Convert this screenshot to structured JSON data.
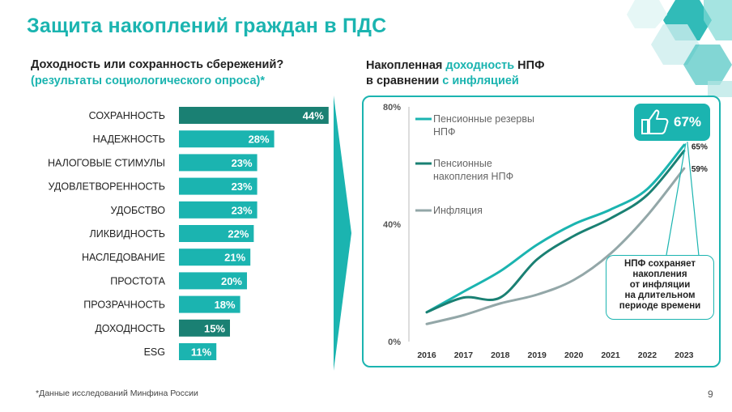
{
  "title": "Защита накоплений граждан в ПДС",
  "left": {
    "question": "Доходность или сохранность сбережений?",
    "subtitle": "(результаты социологического опроса)*"
  },
  "right": {
    "title_part1": "Накопленная ",
    "title_hl1": "доходность",
    "title_part2": " НПФ",
    "title_part3": "в сравнении ",
    "title_hl2": "с инфляцией"
  },
  "badge": {
    "value": "67%",
    "icon": "thumbs-up-icon"
  },
  "callout": [
    "НПФ сохраняет",
    "накопления",
    "от инфляции",
    "на длительном",
    "периоде времени"
  ],
  "footnote": "*Данные исследований Минфина России",
  "page_number": "9",
  "colors": {
    "accent": "#1bb4b0",
    "dark": "#1a8073",
    "gray": "#93a7a8"
  },
  "chart_data": [
    {
      "type": "bar",
      "orientation": "horizontal",
      "categories": [
        "СОХРАННОСТЬ",
        "НАДЕЖНОСТЬ",
        "НАЛОГОВЫЕ СТИМУЛЫ",
        "УДОВЛЕТВОРЕННОСТЬ",
        "УДОБСТВО",
        "ЛИКВИДНОСТЬ",
        "НАСЛЕДОВАНИЕ",
        "ПРОСТОТА",
        "ПРОЗРАЧНОСТЬ",
        "ДОХОДНОСТЬ",
        "ESG"
      ],
      "values": [
        44,
        28,
        23,
        23,
        23,
        22,
        21,
        20,
        18,
        15,
        11
      ],
      "labels": [
        "44%",
        "28%",
        "23%",
        "23%",
        "23%",
        "22%",
        "21%",
        "20%",
        "18%",
        "15%",
        "11%"
      ],
      "highlight": [
        "СОХРАННОСТЬ",
        "ДОХОДНОСТЬ"
      ],
      "colors": {
        "default": "#1bb4b0",
        "highlight": "#1a8073"
      }
    },
    {
      "type": "line",
      "x": [
        "2016",
        "2017",
        "2018",
        "2019",
        "2020",
        "2021",
        "2022",
        "2023"
      ],
      "ylim": [
        0,
        80
      ],
      "yticks": [
        "0%",
        "40%",
        "80%"
      ],
      "series": [
        {
          "name": "Пенсионные резервы НПФ",
          "values": [
            10,
            17,
            24,
            33,
            40,
            45,
            52,
            67
          ],
          "color": "#1bb4b0"
        },
        {
          "name": "Пенсионные накопления НПФ",
          "values": [
            10,
            15,
            15,
            28,
            36,
            42,
            50,
            65
          ],
          "color": "#1a8073"
        },
        {
          "name": "Инфляция",
          "values": [
            6,
            9,
            13,
            16,
            21,
            30,
            43,
            59
          ],
          "color": "#93a7a8"
        }
      ],
      "end_labels": [
        "65%",
        "59%"
      ]
    }
  ]
}
